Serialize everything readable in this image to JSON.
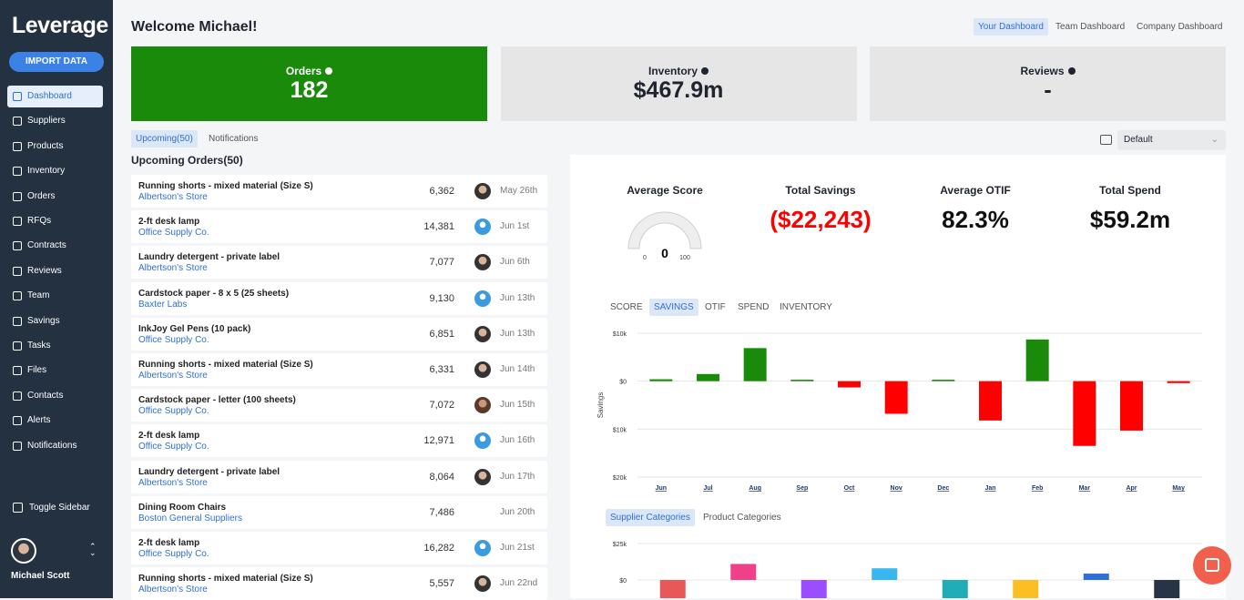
{
  "sidebar": {
    "logo": "Leverage",
    "import_button": "IMPORT DATA",
    "nav": [
      "Dashboard",
      "Suppliers",
      "Products",
      "Inventory",
      "Orders",
      "RFQs",
      "Contracts",
      "Reviews",
      "Team",
      "Savings",
      "Tasks",
      "Files",
      "Contacts",
      "Alerts",
      "Notifications"
    ],
    "toggle": "Toggle Sidebar",
    "user": "Michael Scott"
  },
  "header": {
    "title": "Welcome Michael!",
    "tabs": [
      "Your Dashboard",
      "Team Dashboard",
      "Company Dashboard"
    ]
  },
  "kpis": [
    {
      "label": "Orders",
      "value": "182"
    },
    {
      "label": "Inventory",
      "value": "$467.9m"
    },
    {
      "label": "Reviews",
      "value": "-"
    }
  ],
  "orders": {
    "tabs": [
      "Upcoming(50)",
      "Notifications"
    ],
    "title": "Upcoming Orders(50)",
    "rows": [
      {
        "item": "Running shorts - mixed material (Size S)",
        "supplier": "Albertson's Store",
        "quantity": "6,362",
        "date": "May 26th"
      },
      {
        "item": "2-ft desk lamp",
        "supplier": "Office Supply Co.",
        "quantity": "14,381",
        "date": "Jun 1st"
      },
      {
        "item": "Laundry detergent - private label",
        "supplier": "Albertson's Store",
        "quantity": "7,077",
        "date": "Jun 6th"
      },
      {
        "item": "Cardstock paper - 8 x 5 (25 sheets)",
        "supplier": "Baxter Labs",
        "quantity": "9,130",
        "date": "Jun 13th"
      },
      {
        "item": "InkJoy Gel Pens (10 pack)",
        "supplier": "Office Supply Co.",
        "quantity": "6,851",
        "date": "Jun 13th"
      },
      {
        "item": "Running shorts - mixed material (Size S)",
        "supplier": "Albertson's Store",
        "quantity": "6,331",
        "date": "Jun 14th"
      },
      {
        "item": "Cardstock paper - letter (100 sheets)",
        "supplier": "Office Supply Co.",
        "quantity": "7,072",
        "date": "Jun 15th"
      },
      {
        "item": "2-ft desk lamp",
        "supplier": "Office Supply Co.",
        "quantity": "12,971",
        "date": "Jun 16th"
      },
      {
        "item": "Laundry detergent - private label",
        "supplier": "Albertson's Store",
        "quantity": "8,064",
        "date": "Jun 17th"
      },
      {
        "item": "Dining Room Chairs",
        "supplier": "Boston General Suppliers",
        "quantity": "7,486",
        "date": "Jun 20th"
      },
      {
        "item": "2-ft desk lamp",
        "supplier": "Office Supply Co.",
        "quantity": "16,282",
        "date": "Jun 21st"
      },
      {
        "item": "Running shorts - mixed material (Size S)",
        "supplier": "Albertson's Store",
        "quantity": "5,557",
        "date": "Jun 22nd"
      }
    ]
  },
  "view_select": "Default",
  "metrics": [
    {
      "label": "Average Score",
      "value": "0"
    },
    {
      "label": "Total Savings",
      "value": "($22,243)"
    },
    {
      "label": "Average OTIF",
      "value": "82.3%"
    },
    {
      "label": "Total Spend",
      "value": "$59.2m"
    }
  ],
  "gauge": {
    "min": "0",
    "max": "100"
  },
  "chart_tabs": [
    "SCORE",
    "SAVINGS",
    "OTIF",
    "SPEND",
    "INVENTORY"
  ],
  "category_tabs": [
    "Supplier Categories",
    "Product Categories"
  ],
  "chart_data": [
    {
      "type": "bar",
      "y_label": "Savings",
      "categories": [
        "Jun",
        "Jul",
        "Aug",
        "Sep",
        "Oct",
        "Nov",
        "Dec",
        "Jan",
        "Feb",
        "Mar",
        "Apr",
        "May"
      ],
      "values": [
        400,
        1500,
        6900,
        300,
        -1300,
        -6800,
        300,
        -8200,
        8700,
        -13500,
        -10300,
        -400
      ],
      "positive_color": "#1a8a0a",
      "negative_color": "#ff0000",
      "ylim": [
        -20000,
        10000
      ],
      "yticks": [
        {
          "value": 10000,
          "label": "$10k"
        },
        {
          "value": 0,
          "label": "$0"
        },
        {
          "value": -10000,
          "label": "$10k"
        },
        {
          "value": -20000,
          "label": "$20k"
        }
      ],
      "grid": true
    },
    {
      "type": "bar",
      "values": [
        -15000,
        11000,
        -15000,
        8000,
        -15000,
        -15000,
        4400,
        -15000
      ],
      "colors": [
        "#e85858",
        "#f0408a",
        "#9b4dff",
        "#38b6ef",
        "#20adb8",
        "#fbbf24",
        "#2f6fd6",
        "#263445"
      ],
      "ylim": [
        -25000,
        25000
      ],
      "yticks": [
        {
          "value": 25000,
          "label": "$25k"
        },
        {
          "value": 0,
          "label": "$0"
        }
      ],
      "grid": true
    }
  ]
}
